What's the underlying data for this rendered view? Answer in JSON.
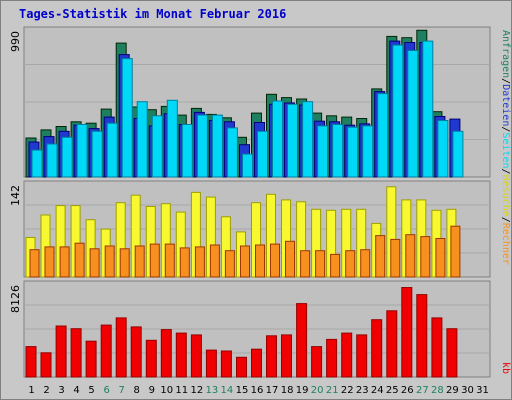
{
  "chart_data": [
    {
      "type": "bar",
      "title": "Tages-Statistik im Monat Februar 2016",
      "panel": "top",
      "y_scale_label": "990",
      "series": [
        {
          "name": "Anfragen",
          "color": "#1e8060",
          "values": [
            290,
            350,
            375,
            410,
            400,
            505,
            995,
            520,
            500,
            525,
            460,
            510,
            465,
            440,
            295,
            475,
            615,
            590,
            580,
            475,
            455,
            445,
            435,
            655,
            1045,
            1035,
            1090,
            485,
            0,
            0,
            0
          ]
        },
        {
          "name": "Dateien",
          "color": "#2038d0",
          "values": [
            260,
            300,
            340,
            385,
            360,
            445,
            910,
            435,
            380,
            470,
            390,
            480,
            420,
            410,
            240,
            405,
            540,
            550,
            535,
            415,
            410,
            385,
            395,
            635,
            1010,
            1000,
            1000,
            450,
            430,
            0,
            0
          ]
        },
        {
          "name": "Seiten",
          "color": "#00d8f8",
          "values": [
            200,
            245,
            295,
            390,
            340,
            400,
            880,
            560,
            455,
            570,
            390,
            460,
            460,
            365,
            170,
            340,
            565,
            540,
            560,
            380,
            390,
            370,
            380,
            620,
            980,
            940,
            1010,
            420,
            340,
            0,
            0
          ]
        }
      ],
      "ylim": [
        0,
        1100
      ]
    },
    {
      "type": "bar",
      "panel": "middle",
      "y_scale_label": "142",
      "series": [
        {
          "name": "Besuche",
          "color": "#f8f830",
          "values": [
            42,
            66,
            76,
            76,
            61,
            51,
            79,
            87,
            75,
            78,
            69,
            90,
            85,
            64,
            48,
            79,
            88,
            82,
            80,
            72,
            71,
            72,
            72,
            57,
            96,
            82,
            82,
            71,
            72,
            0,
            0
          ]
        },
        {
          "name": "Rechner",
          "color": "#f89020",
          "values": [
            29,
            32,
            32,
            36,
            30,
            33,
            30,
            33,
            35,
            35,
            31,
            32,
            34,
            28,
            33,
            34,
            35,
            38,
            28,
            28,
            24,
            28,
            29,
            44,
            40,
            45,
            43,
            41,
            54,
            0,
            0
          ]
        }
      ],
      "ylim": [
        0,
        100
      ]
    },
    {
      "type": "bar",
      "panel": "bottom",
      "y_scale_label": "8126",
      "series": [
        {
          "name": "kb",
          "color": "#f00000",
          "values": [
            3400,
            2700,
            5700,
            5400,
            4000,
            5800,
            6600,
            5600,
            4100,
            5300,
            4900,
            4700,
            3000,
            2900,
            2200,
            3100,
            4600,
            4700,
            8200,
            3400,
            4200,
            4900,
            4700,
            6400,
            7400,
            10000,
            9200,
            6600,
            5400,
            0,
            0
          ]
        }
      ],
      "ylim": [
        0,
        10500
      ]
    }
  ],
  "x_labels": [
    "1",
    "2",
    "3",
    "4",
    "5",
    "6",
    "7",
    "8",
    "9",
    "10",
    "11",
    "12",
    "13",
    "14",
    "15",
    "16",
    "17",
    "18",
    "19",
    "20",
    "21",
    "22",
    "23",
    "24",
    "25",
    "26",
    "27",
    "28",
    "29",
    "30",
    "31"
  ],
  "weekend_days": [
    6,
    7,
    13,
    14,
    20,
    21,
    27,
    28
  ],
  "colors": {
    "weekday_label": "#000000",
    "weekend_label": "#1e8060",
    "plot_bg": "#c0c0c0",
    "frame_bg": "#c8c8c8"
  },
  "legend_top": [
    {
      "text": "Anfragen",
      "color": "#1e8060"
    },
    {
      "text": "/",
      "color": "#000000"
    },
    {
      "text": "Dateien",
      "color": "#2038d0"
    },
    {
      "text": "/",
      "color": "#000000"
    },
    {
      "text": "Seiten",
      "color": "#00d8f8"
    },
    {
      "text": "/",
      "color": "#000000"
    },
    {
      "text": "Besuche",
      "color": "#d8d800"
    },
    {
      "text": "/",
      "color": "#000000"
    },
    {
      "text": "Rechner",
      "color": "#f89020"
    }
  ],
  "legend_bottom": {
    "text": "kb",
    "color": "#f00000"
  }
}
